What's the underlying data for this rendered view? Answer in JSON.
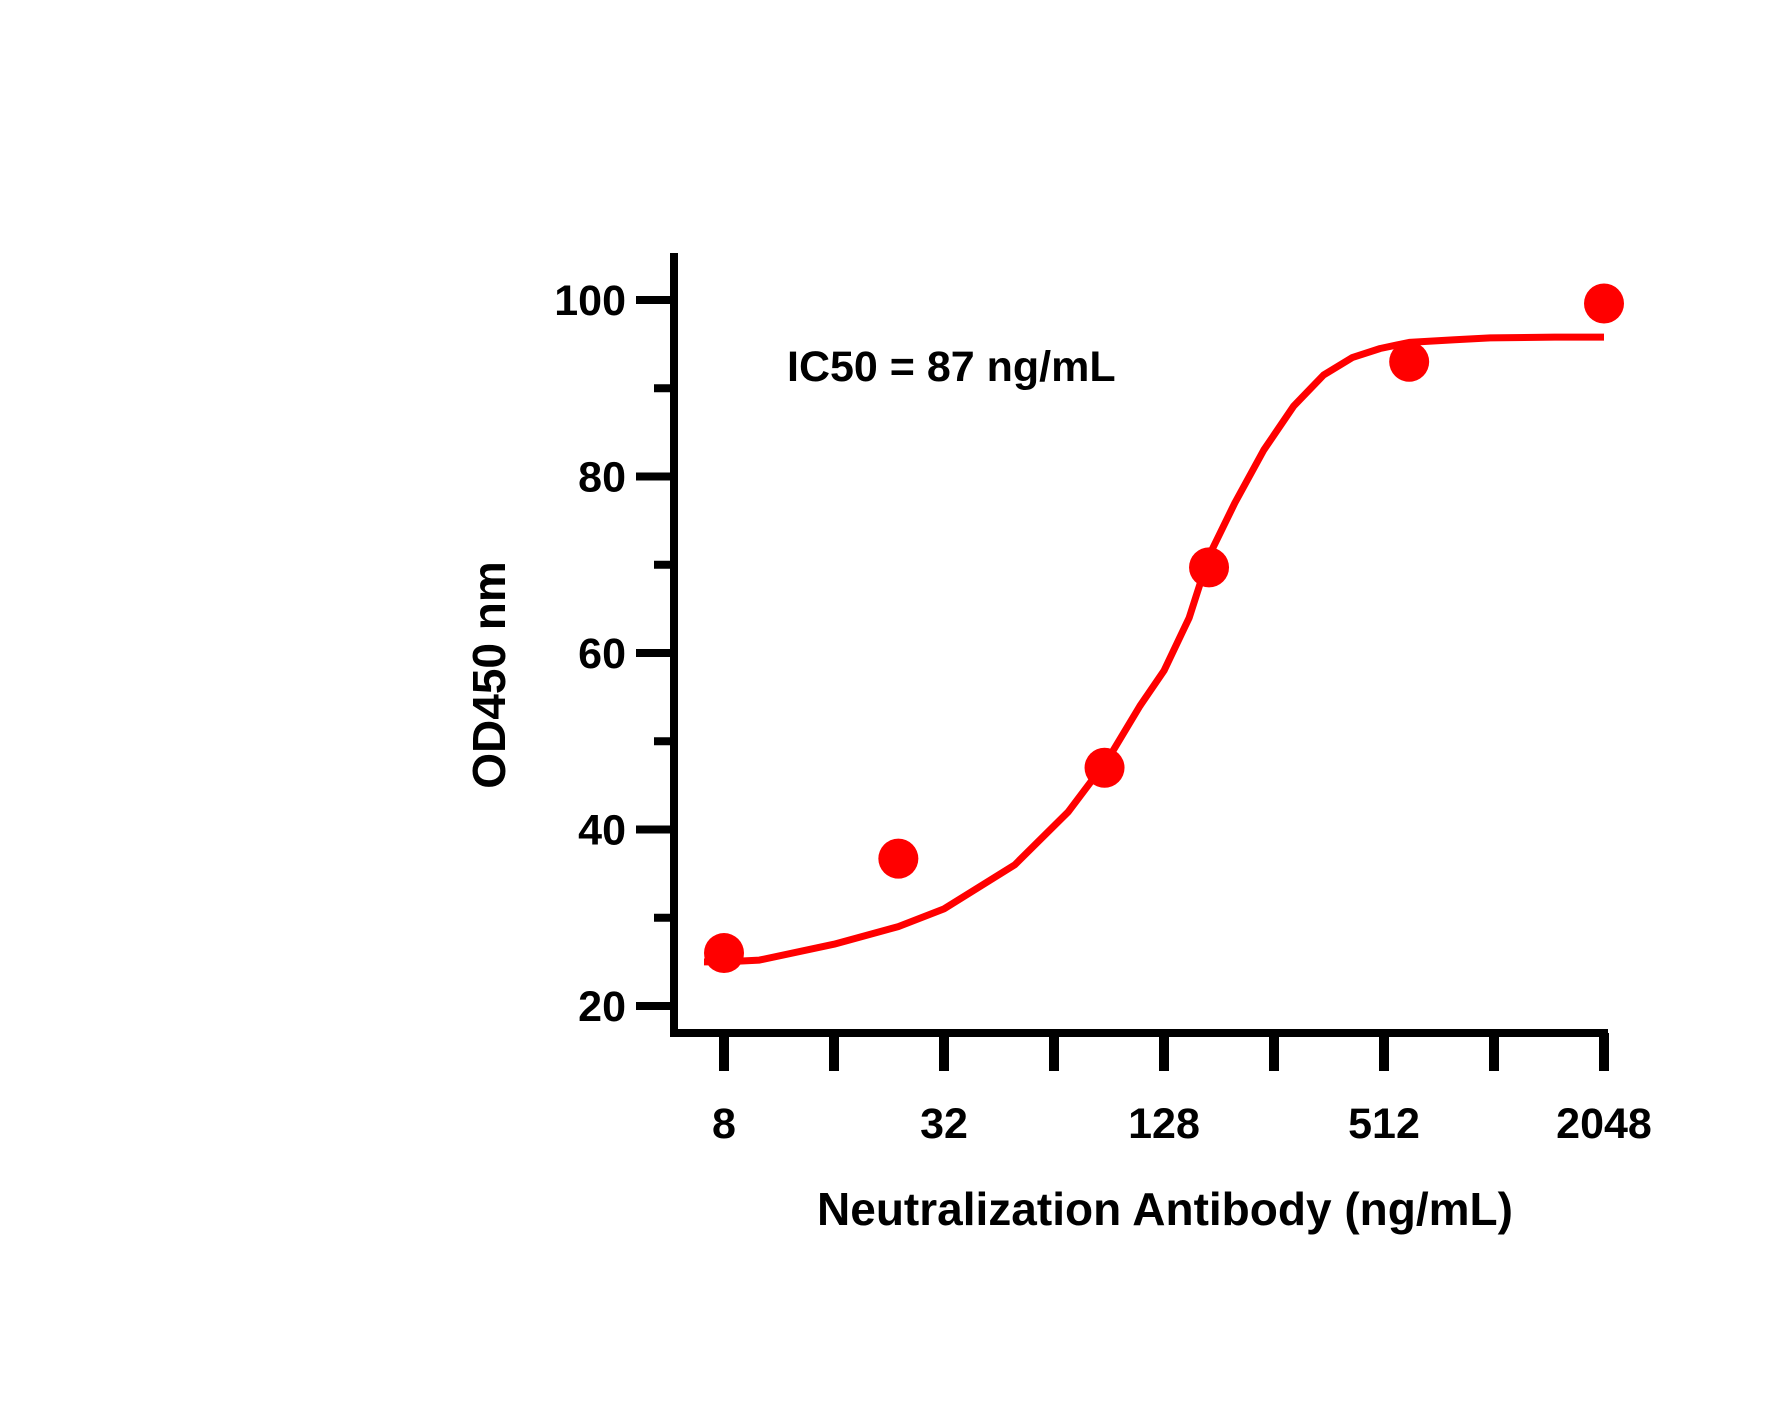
{
  "colors": {
    "series": "#ff0000",
    "axis": "#000000",
    "background": "#ffffff"
  },
  "chart_data": {
    "type": "scatter",
    "title": "",
    "xlabel": "Neutralization Antibody (ng/mL)",
    "ylabel": "OD450 nm",
    "annotation": "IC50 = 87 ng/mL",
    "x_scale": "log2",
    "xlim": [
      6.5,
      2048
    ],
    "ylim": [
      17,
      105
    ],
    "x_ticks": [
      8,
      16,
      32,
      64,
      128,
      256,
      512,
      1024,
      2048
    ],
    "x_tick_labels": [
      "8",
      "32",
      "128",
      "512",
      "2048"
    ],
    "x_tick_label_values": [
      8,
      32,
      128,
      512,
      2048
    ],
    "y_ticks_major": [
      20,
      40,
      60,
      80,
      100
    ],
    "y_tick_labels": [
      "20",
      "40",
      "60",
      "80",
      "100"
    ],
    "y_ticks_minor": [
      30,
      50,
      70,
      90
    ],
    "series": [
      {
        "name": "measured",
        "style": "points",
        "x": [
          8,
          24,
          88,
          170,
          600,
          2048
        ],
        "y": [
          26,
          36.7,
          47,
          69.7,
          93,
          99.6
        ]
      },
      {
        "name": "fit",
        "style": "line",
        "x": [
          8,
          10,
          16,
          24,
          32,
          50,
          70,
          90,
          110,
          128,
          150,
          170,
          200,
          240,
          290,
          350,
          420,
          500,
          600,
          800,
          1000,
          1500,
          2048
        ],
        "y": [
          25,
          25.2,
          27,
          29,
          31,
          36,
          42,
          48,
          54,
          58,
          64,
          71,
          77,
          83,
          88,
          91.5,
          93.5,
          94.5,
          95.2,
          95.5,
          95.7,
          95.8,
          95.8
        ]
      }
    ]
  }
}
